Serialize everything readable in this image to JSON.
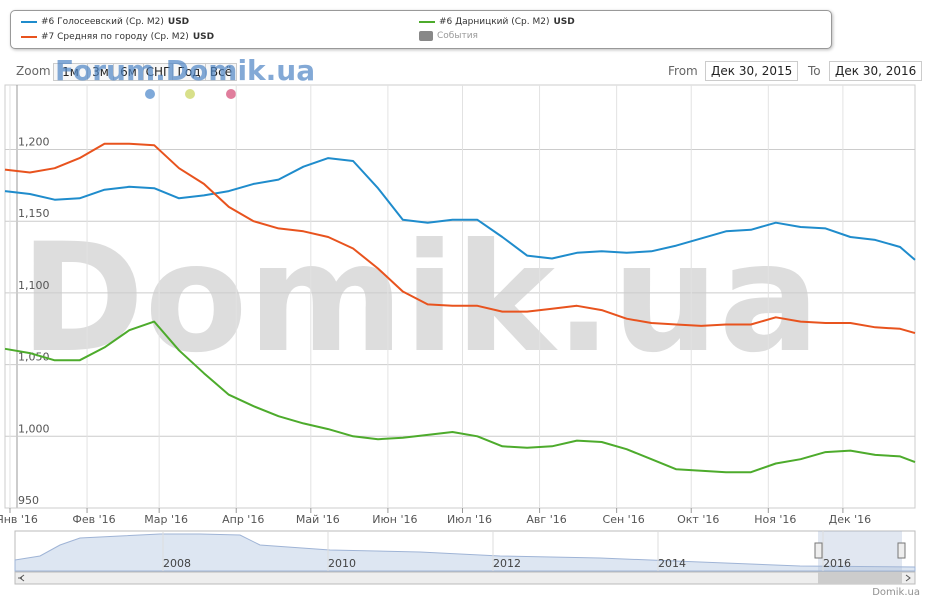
{
  "chart_data": {
    "type": "line",
    "unit": "USD",
    "x": [
      0,
      10,
      20,
      30,
      40,
      50,
      60,
      70,
      80,
      90,
      100,
      110,
      120,
      130,
      140,
      150,
      160,
      170,
      180,
      190,
      200,
      210,
      220,
      230,
      240,
      250,
      260,
      270,
      280,
      290,
      300,
      310,
      320,
      330,
      340,
      350,
      360,
      366
    ],
    "xlim": [
      0,
      366
    ],
    "xticks": [
      {
        "value": 2,
        "label": "Янв '16"
      },
      {
        "value": 33,
        "label": "Фев '16"
      },
      {
        "value": 62,
        "label": "Мар '16"
      },
      {
        "value": 93,
        "label": "Апр '16"
      },
      {
        "value": 123,
        "label": "Май '16"
      },
      {
        "value": 154,
        "label": "Июн '16"
      },
      {
        "value": 184,
        "label": "Июл '16"
      },
      {
        "value": 215,
        "label": "Авг '16"
      },
      {
        "value": 246,
        "label": "Сен '16"
      },
      {
        "value": 276,
        "label": "Окт '16"
      },
      {
        "value": 307,
        "label": "Ноя '16"
      },
      {
        "value": 337,
        "label": "Дек '16"
      }
    ],
    "ylim": [
      950,
      1245
    ],
    "yticks": [
      950,
      {
        "value": 1000,
        "label": "1,000"
      },
      {
        "value": 1050,
        "label": "1,050"
      },
      {
        "value": 1100,
        "label": "1,100"
      },
      {
        "value": 1150,
        "label": "1,150"
      },
      {
        "value": 1200,
        "label": "1,200"
      }
    ],
    "grid": true,
    "series": [
      {
        "name": "#6 Голосеевский (Ср. М2)",
        "color": "#1f8ccc",
        "values": [
          1171,
          1169,
          1165,
          1166,
          1172,
          1174,
          1173,
          1166,
          1168,
          1171,
          1176,
          1179,
          1188,
          1194,
          1192,
          1173,
          1151,
          1149,
          1151,
          1151,
          1139,
          1126,
          1124,
          1128,
          1129,
          1128,
          1129,
          1133,
          1138,
          1143,
          1144,
          1149,
          1146,
          1145,
          1139,
          1137,
          1132,
          1123
        ]
      },
      {
        "name": "#7 Средняя по городу (Ср. М2)",
        "color": "#e8531e",
        "values": [
          1186,
          1184,
          1187,
          1194,
          1204,
          1204,
          1203,
          1187,
          1176,
          1160,
          1150,
          1145,
          1143,
          1139,
          1131,
          1117,
          1101,
          1092,
          1091,
          1091,
          1087,
          1087,
          1089,
          1091,
          1088,
          1082,
          1079,
          1078,
          1077,
          1078,
          1078,
          1083,
          1080,
          1079,
          1079,
          1076,
          1075,
          1072
        ]
      },
      {
        "name": "#6 Дарницкий (Ср. М2)",
        "color": "#4dab2c",
        "values": [
          1061,
          1058,
          1053,
          1053,
          1062,
          1074,
          1080,
          1060,
          1044,
          1029,
          1021,
          1014,
          1009,
          1005,
          1000,
          998,
          999,
          1001,
          1003,
          1000,
          993,
          992,
          993,
          997,
          996,
          991,
          984,
          977,
          976,
          975,
          975,
          981,
          984,
          989,
          990,
          987,
          986,
          982
        ]
      }
    ]
  },
  "controls": {
    "zoom_label": "Zoom",
    "zoom_buttons": [
      "1м",
      "3м",
      "6м",
      "СНГ",
      "Год",
      "Всё"
    ],
    "from_label": "From",
    "from_date": "Дек 30, 2015",
    "to_label": "To",
    "to_date": "Дек 30, 2016",
    "events_label": "События",
    "watermark": "Domik.ua",
    "forum_watermark": "Forum.Domik.ua",
    "credits": "Domik.ua",
    "navigator_years": [
      "2008",
      "2010",
      "2012",
      "2014",
      "2016"
    ]
  }
}
